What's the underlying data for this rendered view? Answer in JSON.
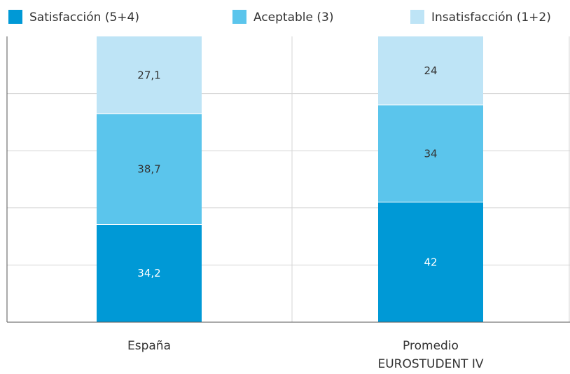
{
  "chart_data": {
    "type": "bar",
    "stacked": true,
    "categories": [
      [
        "España"
      ],
      [
        "Promedio",
        "EUROSTUDENT IV"
      ]
    ],
    "series": [
      {
        "name": "Satisfacción (5+4)",
        "values": [
          34.2,
          42
        ],
        "labels": [
          "34,2",
          "42"
        ],
        "color": "#0099d6",
        "label_color": "#ffffff"
      },
      {
        "name": "Aceptable (3)",
        "values": [
          38.7,
          34
        ],
        "labels": [
          "38,7",
          "34"
        ],
        "color": "#5bc5ec",
        "label_color": "#333333"
      },
      {
        "name": "Insatisfacción (1+2)",
        "values": [
          27.1,
          24
        ],
        "labels": [
          "27,1",
          "24"
        ],
        "color": "#bee4f6",
        "label_color": "#333333"
      }
    ],
    "ylim": [
      0,
      100
    ],
    "grid": true,
    "legend_position": "top"
  }
}
